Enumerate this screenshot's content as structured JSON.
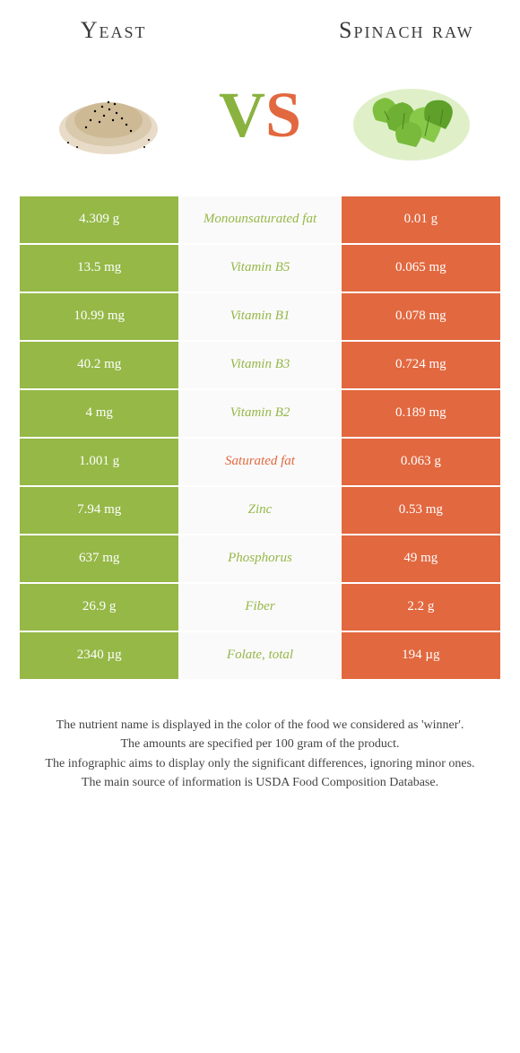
{
  "header": {
    "left_title": "Yeast",
    "right_title": "Spinach raw",
    "vs_v": "V",
    "vs_s": "S"
  },
  "colors": {
    "left_bg": "#95b847",
    "right_bg": "#e2683f",
    "mid_bg": "#fafafa",
    "text_white": "#ffffff"
  },
  "rows": [
    {
      "left": "4.309 g",
      "label": "Monounsaturated fat",
      "right": "0.01 g",
      "winner": "left"
    },
    {
      "left": "13.5 mg",
      "label": "Vitamin B5",
      "right": "0.065 mg",
      "winner": "left"
    },
    {
      "left": "10.99 mg",
      "label": "Vitamin B1",
      "right": "0.078 mg",
      "winner": "left"
    },
    {
      "left": "40.2 mg",
      "label": "Vitamin B3",
      "right": "0.724 mg",
      "winner": "left"
    },
    {
      "left": "4 mg",
      "label": "Vitamin B2",
      "right": "0.189 mg",
      "winner": "left"
    },
    {
      "left": "1.001 g",
      "label": "Saturated fat",
      "right": "0.063 g",
      "winner": "right"
    },
    {
      "left": "7.94 mg",
      "label": "Zinc",
      "right": "0.53 mg",
      "winner": "left"
    },
    {
      "left": "637 mg",
      "label": "Phosphorus",
      "right": "49 mg",
      "winner": "left"
    },
    {
      "left": "26.9 g",
      "label": "Fiber",
      "right": "2.2 g",
      "winner": "left"
    },
    {
      "left": "2340 µg",
      "label": "Folate, total",
      "right": "194 µg",
      "winner": "left"
    }
  ],
  "footer": {
    "line1": "The nutrient name is displayed in the color of the food we considered as 'winner'.",
    "line2": "The amounts are specified per 100 gram of the product.",
    "line3": "The infographic aims to display only the significant differences, ignoring minor ones.",
    "line4": "The main source of information is USDA Food Composition Database."
  }
}
